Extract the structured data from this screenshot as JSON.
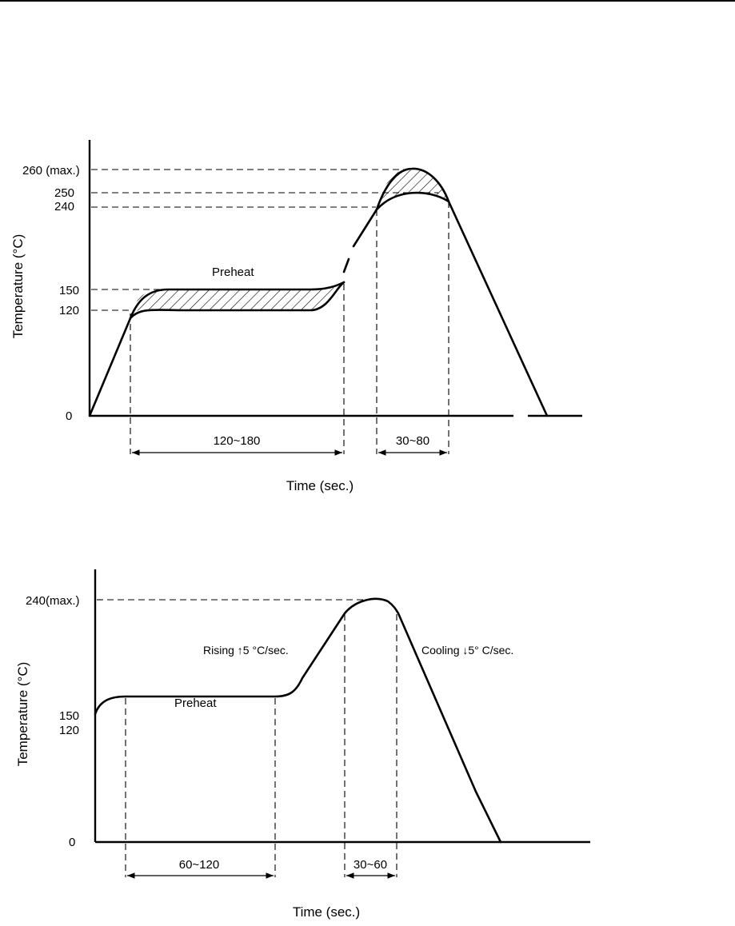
{
  "figure_1": {
    "y_axis_label": "Temperature (°C)",
    "x_axis_label": "Time (sec.)",
    "ticks": [
      "260 (max.)",
      "250",
      "240",
      "150",
      "120",
      "0"
    ],
    "region_label": "Preheat",
    "intervals": [
      "120~180",
      "30~80"
    ]
  },
  "figure_2": {
    "y_axis_label": "Temperature (°C)",
    "x_axis_label": "Time (sec.)",
    "ticks": [
      "240(max.)",
      "150",
      "120",
      "0"
    ],
    "region_label": "Preheat",
    "rising_label": "Rising ↑5 °C/sec.",
    "cooling_label": "Cooling ↓5° C/sec.",
    "intervals": [
      "60~120",
      "30~60"
    ]
  }
}
